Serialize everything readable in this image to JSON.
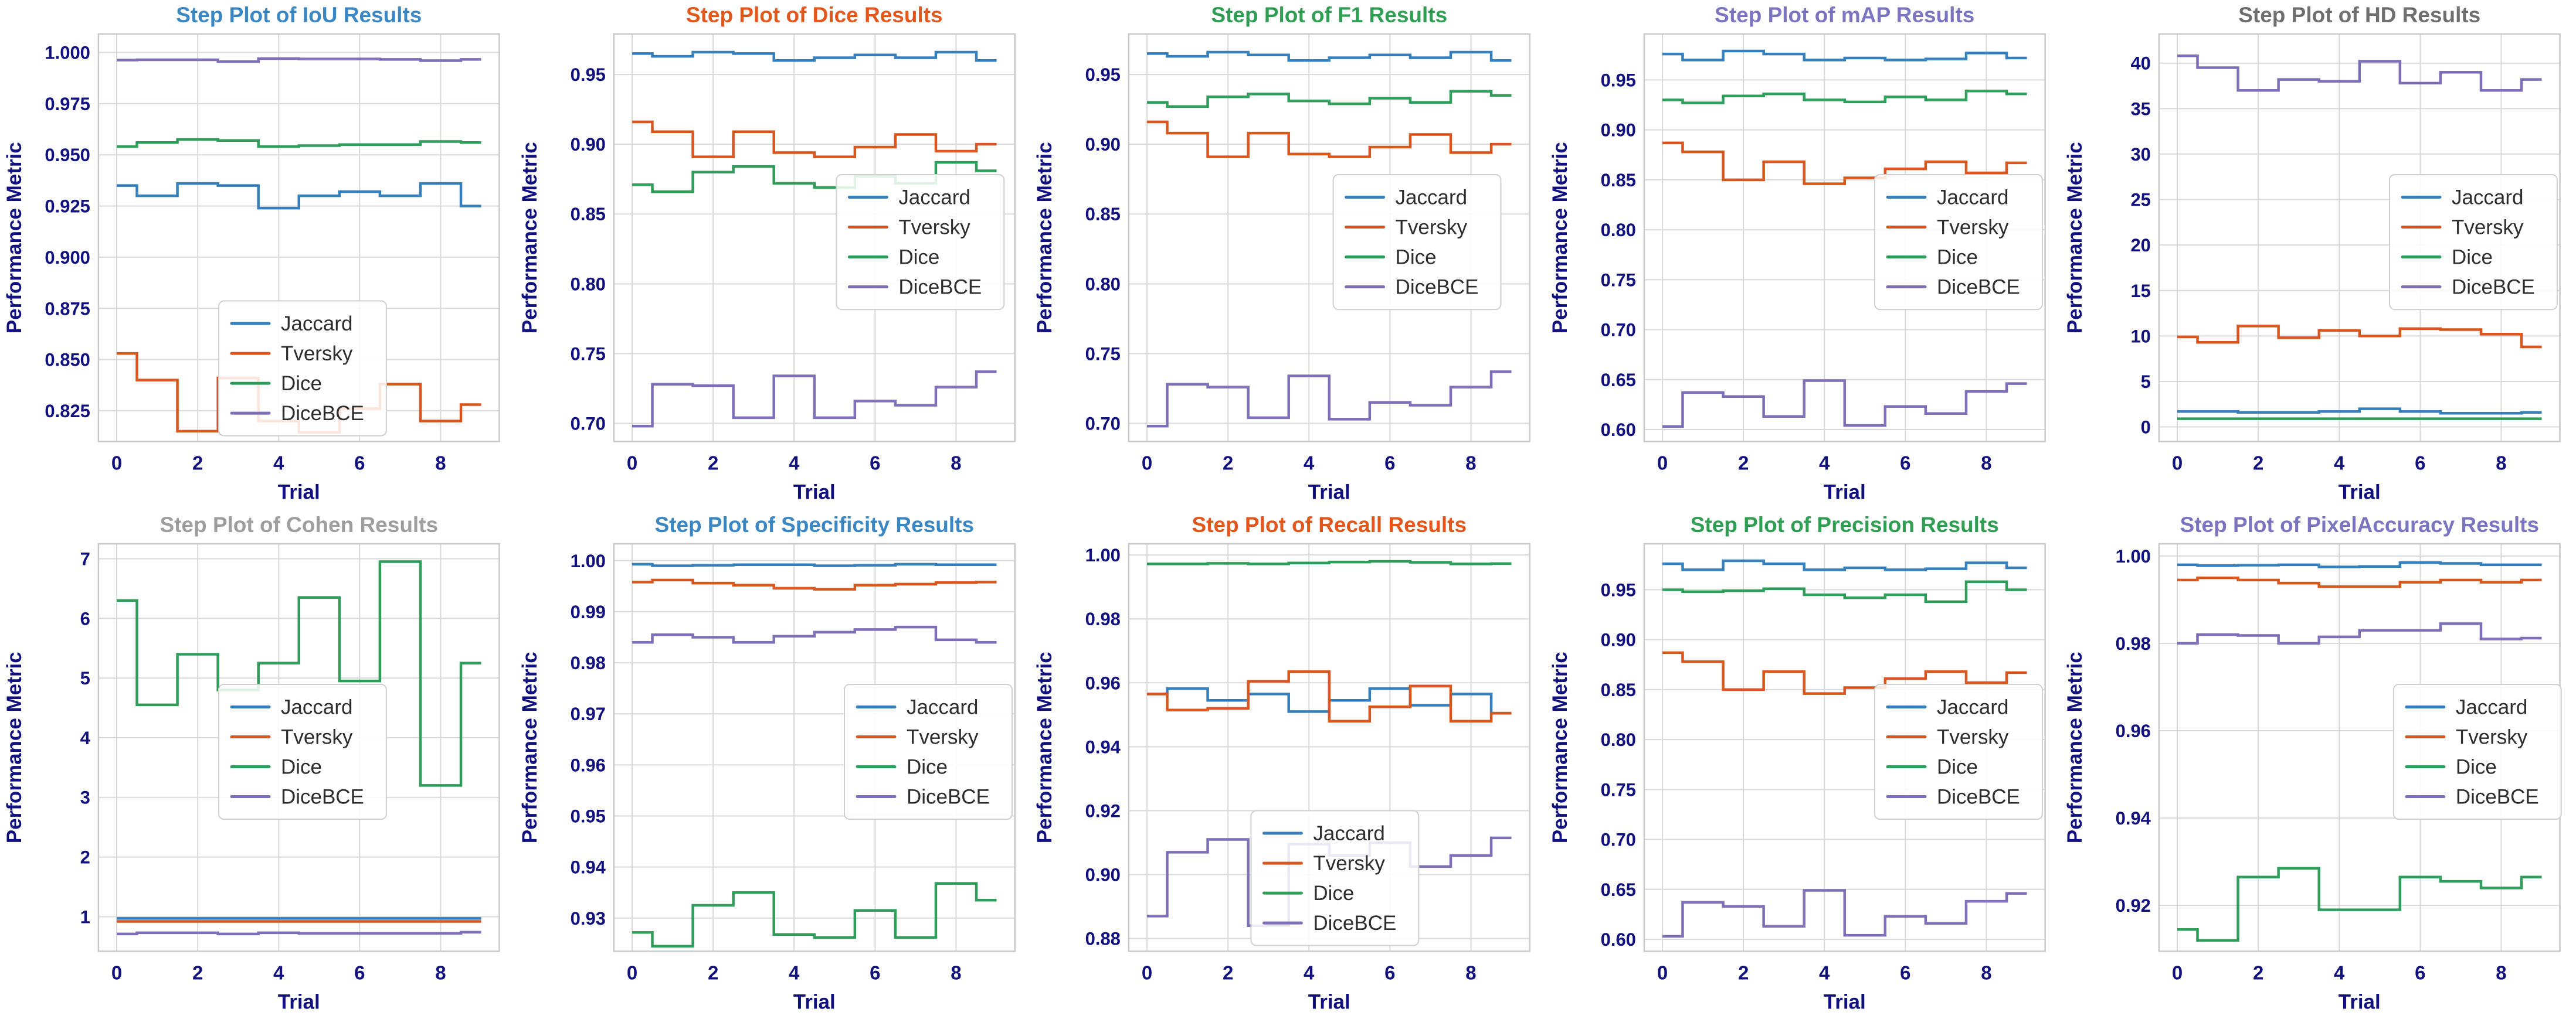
{
  "figure": {
    "xlabel": "Trial",
    "ylabel": "Performance Metric",
    "x_tick_labels": [
      "0",
      "2",
      "4",
      "6",
      "8"
    ],
    "x_tick_values": [
      0,
      2,
      4,
      6,
      8
    ],
    "trials": [
      0,
      1,
      2,
      3,
      4,
      5,
      6,
      7,
      8,
      9
    ],
    "x_range": [
      -0.45,
      9.45
    ],
    "legend_labels": [
      "Jaccard",
      "Tversky",
      "Dice",
      "DiceBCE"
    ],
    "step_where": "mid",
    "grid": "on"
  },
  "colors": {
    "series": {
      "Jaccard": "#3580bc",
      "Tversky": "#d9561f",
      "Dice": "#2f9e5a",
      "DiceBCE": "#7e6fb8"
    },
    "axis_text": "#10107f",
    "legend_text": "#2d2d2d",
    "grid_line": "#d9d9d9",
    "spine": "#c9c9c9",
    "background": "#ffffff"
  },
  "chart_data": [
    {
      "id": "iou",
      "type": "line",
      "step": "mid",
      "title": "Step Plot of IoU Results",
      "title_color": "#3a87c4",
      "xlabel": "Trial",
      "ylabel": "Performance Metric",
      "x": [
        0,
        1,
        2,
        3,
        4,
        5,
        6,
        7,
        8,
        9
      ],
      "y_tick_values": [
        0.825,
        0.85,
        0.875,
        0.9,
        0.925,
        0.95,
        0.975,
        1.0
      ],
      "y_tick_labels": [
        "0.825",
        "0.850",
        "0.875",
        "0.900",
        "0.925",
        "0.950",
        "0.975",
        "1.000"
      ],
      "ylim": [
        0.81,
        1.009
      ],
      "legend_pos": {
        "x": 0.3,
        "y": 0.655
      },
      "series": [
        {
          "name": "Jaccard",
          "values": [
            0.935,
            0.93,
            0.936,
            0.935,
            0.924,
            0.93,
            0.932,
            0.93,
            0.936,
            0.925
          ]
        },
        {
          "name": "Tversky",
          "values": [
            0.853,
            0.84,
            0.815,
            0.841,
            0.82,
            0.8145,
            0.826,
            0.838,
            0.82,
            0.828
          ]
        },
        {
          "name": "Dice",
          "values": [
            0.954,
            0.956,
            0.9575,
            0.957,
            0.954,
            0.9545,
            0.955,
            0.955,
            0.9565,
            0.956
          ]
        },
        {
          "name": "DiceBCE",
          "values": [
            0.9963,
            0.9964,
            0.9964,
            0.9955,
            0.997,
            0.9968,
            0.9968,
            0.9966,
            0.996,
            0.9966
          ]
        }
      ]
    },
    {
      "id": "dice",
      "type": "line",
      "step": "mid",
      "title": "Step Plot of Dice Results",
      "title_color": "#e3571d",
      "xlabel": "Trial",
      "ylabel": "Performance Metric",
      "x": [
        0,
        1,
        2,
        3,
        4,
        5,
        6,
        7,
        8,
        9
      ],
      "y_tick_values": [
        0.7,
        0.75,
        0.8,
        0.85,
        0.9,
        0.95
      ],
      "y_tick_labels": [
        "0.70",
        "0.75",
        "0.80",
        "0.85",
        "0.90",
        "0.95"
      ],
      "ylim": [
        0.687,
        0.979
      ],
      "legend_pos": {
        "x": 0.555,
        "y": 0.345
      },
      "series": [
        {
          "name": "Jaccard",
          "values": [
            0.965,
            0.963,
            0.966,
            0.965,
            0.96,
            0.962,
            0.964,
            0.962,
            0.966,
            0.96
          ]
        },
        {
          "name": "Tversky",
          "values": [
            0.916,
            0.909,
            0.891,
            0.909,
            0.894,
            0.891,
            0.898,
            0.907,
            0.895,
            0.9
          ]
        },
        {
          "name": "Dice",
          "values": [
            0.871,
            0.866,
            0.88,
            0.884,
            0.872,
            0.869,
            0.877,
            0.872,
            0.887,
            0.881
          ]
        },
        {
          "name": "DiceBCE",
          "values": [
            0.698,
            0.728,
            0.727,
            0.704,
            0.734,
            0.704,
            0.716,
            0.713,
            0.726,
            0.737
          ]
        }
      ]
    },
    {
      "id": "f1",
      "type": "line",
      "step": "mid",
      "title": "Step Plot of F1 Results",
      "title_color": "#2f9e53",
      "xlabel": "Trial",
      "ylabel": "Performance Metric",
      "x": [
        0,
        1,
        2,
        3,
        4,
        5,
        6,
        7,
        8,
        9
      ],
      "y_tick_values": [
        0.7,
        0.75,
        0.8,
        0.85,
        0.9,
        0.95
      ],
      "y_tick_labels": [
        "0.70",
        "0.75",
        "0.80",
        "0.85",
        "0.90",
        "0.95"
      ],
      "ylim": [
        0.687,
        0.979
      ],
      "legend_pos": {
        "x": 0.51,
        "y": 0.345
      },
      "series": [
        {
          "name": "Jaccard",
          "values": [
            0.965,
            0.963,
            0.966,
            0.964,
            0.96,
            0.962,
            0.964,
            0.962,
            0.966,
            0.96
          ]
        },
        {
          "name": "Tversky",
          "values": [
            0.916,
            0.908,
            0.891,
            0.908,
            0.893,
            0.891,
            0.898,
            0.907,
            0.894,
            0.9
          ]
        },
        {
          "name": "Dice",
          "values": [
            0.93,
            0.927,
            0.934,
            0.936,
            0.931,
            0.929,
            0.933,
            0.93,
            0.938,
            0.935
          ]
        },
        {
          "name": "DiceBCE",
          "values": [
            0.698,
            0.728,
            0.726,
            0.704,
            0.734,
            0.703,
            0.715,
            0.713,
            0.726,
            0.737
          ]
        }
      ]
    },
    {
      "id": "map",
      "type": "line",
      "step": "mid",
      "title": "Step Plot of mAP Results",
      "title_color": "#7b74c0",
      "xlabel": "Trial",
      "ylabel": "Performance Metric",
      "x": [
        0,
        1,
        2,
        3,
        4,
        5,
        6,
        7,
        8,
        9
      ],
      "y_tick_values": [
        0.6,
        0.65,
        0.7,
        0.75,
        0.8,
        0.85,
        0.9,
        0.95
      ],
      "y_tick_labels": [
        "0.60",
        "0.65",
        "0.70",
        "0.75",
        "0.80",
        "0.85",
        "0.90",
        "0.95"
      ],
      "ylim": [
        0.588,
        0.996
      ],
      "legend_pos": {
        "x": 0.575,
        "y": 0.345
      },
      "series": [
        {
          "name": "Jaccard",
          "values": [
            0.976,
            0.97,
            0.979,
            0.976,
            0.97,
            0.972,
            0.97,
            0.971,
            0.977,
            0.972
          ]
        },
        {
          "name": "Tversky",
          "values": [
            0.887,
            0.878,
            0.85,
            0.868,
            0.846,
            0.852,
            0.861,
            0.868,
            0.857,
            0.867
          ]
        },
        {
          "name": "Dice",
          "values": [
            0.93,
            0.927,
            0.934,
            0.936,
            0.93,
            0.928,
            0.933,
            0.93,
            0.939,
            0.936
          ]
        },
        {
          "name": "DiceBCE",
          "values": [
            0.603,
            0.637,
            0.633,
            0.613,
            0.649,
            0.604,
            0.623,
            0.616,
            0.638,
            0.646
          ]
        }
      ]
    },
    {
      "id": "hd",
      "type": "line",
      "step": "mid",
      "title": "Step Plot of HD Results",
      "title_color": "#6f6f6f",
      "xlabel": "Trial",
      "ylabel": "Performance Metric",
      "x": [
        0,
        1,
        2,
        3,
        4,
        5,
        6,
        7,
        8,
        9
      ],
      "y_tick_values": [
        0,
        5,
        10,
        15,
        20,
        25,
        30,
        35,
        40
      ],
      "y_tick_labels": [
        "0",
        "5",
        "10",
        "15",
        "20",
        "25",
        "30",
        "35",
        "40"
      ],
      "ylim": [
        -1.6,
        43.2
      ],
      "legend_pos": {
        "x": 0.575,
        "y": 0.345
      },
      "series": [
        {
          "name": "Jaccard",
          "values": [
            1.7,
            1.7,
            1.6,
            1.6,
            1.7,
            2.0,
            1.7,
            1.5,
            1.5,
            1.6
          ]
        },
        {
          "name": "Tversky",
          "values": [
            9.9,
            9.3,
            11.1,
            9.8,
            10.6,
            10.0,
            10.8,
            10.7,
            10.2,
            8.8
          ]
        },
        {
          "name": "Dice",
          "values": [
            0.9,
            0.9,
            0.9,
            0.9,
            0.9,
            0.9,
            0.9,
            0.9,
            0.9,
            0.9
          ]
        },
        {
          "name": "DiceBCE",
          "values": [
            40.8,
            39.5,
            37.0,
            38.2,
            38.0,
            40.2,
            37.8,
            39.0,
            37.0,
            38.2
          ]
        }
      ]
    },
    {
      "id": "cohen",
      "type": "line",
      "step": "mid",
      "title": "Step Plot of Cohen Results",
      "title_color": "#9e9e9e",
      "xlabel": "Trial",
      "ylabel": "Performance Metric",
      "x": [
        0,
        1,
        2,
        3,
        4,
        5,
        6,
        7,
        8,
        9
      ],
      "y_tick_values": [
        1,
        2,
        3,
        4,
        5,
        6,
        7
      ],
      "y_tick_labels": [
        "1",
        "2",
        "3",
        "4",
        "5",
        "6",
        "7"
      ],
      "ylim": [
        0.42,
        7.25
      ],
      "legend_pos": {
        "x": 0.3,
        "y": 0.345
      },
      "series": [
        {
          "name": "Jaccard",
          "values": [
            0.97,
            0.97,
            0.97,
            0.97,
            0.97,
            0.97,
            0.97,
            0.97,
            0.97,
            0.97
          ]
        },
        {
          "name": "Tversky",
          "values": [
            0.92,
            0.92,
            0.92,
            0.92,
            0.92,
            0.92,
            0.92,
            0.92,
            0.92,
            0.92
          ]
        },
        {
          "name": "Dice",
          "values": [
            6.3,
            4.55,
            5.4,
            4.8,
            5.25,
            6.35,
            4.95,
            6.95,
            3.2,
            5.25
          ]
        },
        {
          "name": "DiceBCE",
          "values": [
            0.71,
            0.73,
            0.73,
            0.71,
            0.73,
            0.72,
            0.72,
            0.72,
            0.72,
            0.74
          ]
        }
      ]
    },
    {
      "id": "specificity",
      "type": "line",
      "step": "mid",
      "title": "Step Plot of Specificity Results",
      "title_color": "#3a87c4",
      "xlabel": "Trial",
      "ylabel": "Performance Metric",
      "x": [
        0,
        1,
        2,
        3,
        4,
        5,
        6,
        7,
        8,
        9
      ],
      "y_tick_values": [
        0.93,
        0.94,
        0.95,
        0.96,
        0.97,
        0.98,
        0.99,
        1.0
      ],
      "y_tick_labels": [
        "0.93",
        "0.94",
        "0.95",
        "0.96",
        "0.97",
        "0.98",
        "0.99",
        "1.00"
      ],
      "ylim": [
        0.9235,
        1.0033
      ],
      "legend_pos": {
        "x": 0.575,
        "y": 0.345
      },
      "series": [
        {
          "name": "Jaccard",
          "values": [
            0.9993,
            0.999,
            0.9991,
            0.9992,
            0.9992,
            0.999,
            0.9991,
            0.9993,
            0.9992,
            0.9992
          ]
        },
        {
          "name": "Tversky",
          "values": [
            0.9958,
            0.9962,
            0.9956,
            0.9952,
            0.9946,
            0.9944,
            0.9952,
            0.9954,
            0.9957,
            0.9958
          ]
        },
        {
          "name": "Dice",
          "values": [
            0.9272,
            0.9245,
            0.9325,
            0.935,
            0.9268,
            0.9262,
            0.9315,
            0.9262,
            0.9368,
            0.9335
          ]
        },
        {
          "name": "DiceBCE",
          "values": [
            0.984,
            0.9855,
            0.985,
            0.984,
            0.9852,
            0.986,
            0.9865,
            0.987,
            0.9845,
            0.984
          ]
        }
      ]
    },
    {
      "id": "recall",
      "type": "line",
      "step": "mid",
      "title": "Step Plot of Recall Results",
      "title_color": "#e3571d",
      "xlabel": "Trial",
      "ylabel": "Performance Metric",
      "x": [
        0,
        1,
        2,
        3,
        4,
        5,
        6,
        7,
        8,
        9
      ],
      "y_tick_values": [
        0.88,
        0.9,
        0.92,
        0.94,
        0.96,
        0.98,
        1.0
      ],
      "y_tick_labels": [
        "0.88",
        "0.90",
        "0.92",
        "0.94",
        "0.96",
        "0.98",
        "1.00"
      ],
      "ylim": [
        0.876,
        1.0035
      ],
      "legend_pos": {
        "x": 0.305,
        "y": 0.655
      },
      "series": [
        {
          "name": "Jaccard",
          "values": [
            0.9565,
            0.9582,
            0.9545,
            0.9565,
            0.951,
            0.9545,
            0.9582,
            0.953,
            0.9565,
            0.9505
          ]
        },
        {
          "name": "Tversky",
          "values": [
            0.9565,
            0.9515,
            0.952,
            0.9605,
            0.9635,
            0.948,
            0.9525,
            0.959,
            0.948,
            0.9505
          ]
        },
        {
          "name": "Dice",
          "values": [
            0.9972,
            0.9972,
            0.9974,
            0.9972,
            0.9975,
            0.9978,
            0.998,
            0.9977,
            0.9972,
            0.9973
          ]
        },
        {
          "name": "DiceBCE",
          "values": [
            0.887,
            0.907,
            0.911,
            0.884,
            0.9095,
            0.906,
            0.91,
            0.9025,
            0.906,
            0.9115
          ]
        }
      ]
    },
    {
      "id": "precision",
      "type": "line",
      "step": "mid",
      "title": "Step Plot of Precision Results",
      "title_color": "#2f9e53",
      "xlabel": "Trial",
      "ylabel": "Performance Metric",
      "x": [
        0,
        1,
        2,
        3,
        4,
        5,
        6,
        7,
        8,
        9
      ],
      "y_tick_values": [
        0.6,
        0.65,
        0.7,
        0.75,
        0.8,
        0.85,
        0.9,
        0.95
      ],
      "y_tick_labels": [
        "0.60",
        "0.65",
        "0.70",
        "0.75",
        "0.80",
        "0.85",
        "0.90",
        "0.95"
      ],
      "ylim": [
        0.588,
        0.996
      ],
      "legend_pos": {
        "x": 0.575,
        "y": 0.345
      },
      "series": [
        {
          "name": "Jaccard",
          "values": [
            0.976,
            0.97,
            0.979,
            0.976,
            0.97,
            0.972,
            0.97,
            0.971,
            0.977,
            0.972
          ]
        },
        {
          "name": "Tversky",
          "values": [
            0.887,
            0.878,
            0.85,
            0.868,
            0.846,
            0.852,
            0.861,
            0.868,
            0.857,
            0.867
          ]
        },
        {
          "name": "Dice",
          "values": [
            0.95,
            0.948,
            0.949,
            0.951,
            0.945,
            0.942,
            0.945,
            0.938,
            0.958,
            0.95
          ]
        },
        {
          "name": "DiceBCE",
          "values": [
            0.603,
            0.637,
            0.633,
            0.613,
            0.649,
            0.604,
            0.623,
            0.616,
            0.638,
            0.646
          ]
        }
      ]
    },
    {
      "id": "pixelaccuracy",
      "type": "line",
      "step": "mid",
      "title": "Step Plot of PixelAccuracy Results",
      "title_color": "#7b74c0",
      "xlabel": "Trial",
      "ylabel": "Performance Metric",
      "x": [
        0,
        1,
        2,
        3,
        4,
        5,
        6,
        7,
        8,
        9
      ],
      "y_tick_values": [
        0.92,
        0.94,
        0.96,
        0.98,
        1.0
      ],
      "y_tick_labels": [
        "0.92",
        "0.94",
        "0.96",
        "0.98",
        "1.00"
      ],
      "ylim": [
        0.9095,
        1.0028
      ],
      "legend_pos": {
        "x": 0.585,
        "y": 0.345
      },
      "series": [
        {
          "name": "Jaccard",
          "values": [
            0.998,
            0.9978,
            0.9979,
            0.998,
            0.9975,
            0.9976,
            0.9985,
            0.9983,
            0.998,
            0.998
          ]
        },
        {
          "name": "Tversky",
          "values": [
            0.9945,
            0.995,
            0.9945,
            0.9938,
            0.993,
            0.993,
            0.994,
            0.9945,
            0.994,
            0.9945
          ]
        },
        {
          "name": "Dice",
          "values": [
            0.9145,
            0.912,
            0.9265,
            0.9285,
            0.919,
            0.919,
            0.9265,
            0.9255,
            0.924,
            0.9265
          ]
        },
        {
          "name": "DiceBCE",
          "values": [
            0.98,
            0.982,
            0.9818,
            0.98,
            0.9815,
            0.983,
            0.983,
            0.9845,
            0.981,
            0.9812
          ]
        }
      ]
    }
  ]
}
